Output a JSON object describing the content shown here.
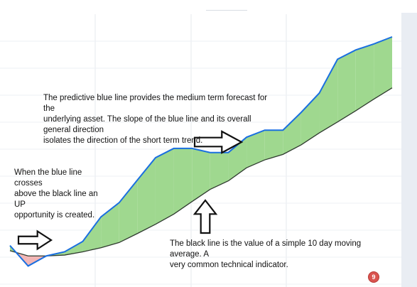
{
  "chart_data": {
    "type": "line",
    "title": "",
    "xlabel": "",
    "ylabel": "",
    "grid": true,
    "legend": "none",
    "x": [
      0,
      1,
      2,
      3,
      4,
      5,
      6,
      7,
      8,
      9,
      10,
      11,
      12,
      13,
      14,
      15,
      16,
      17,
      18,
      19,
      20,
      21
    ],
    "xlim": [
      0,
      21
    ],
    "ylim": [
      0,
      100
    ],
    "series": [
      {
        "key": "blue",
        "color": "#1a6fe0",
        "values": [
          15.2,
          7.7,
          11.4,
          12.9,
          16.7,
          25.7,
          30.9,
          39.2,
          47.4,
          50.8,
          50.8,
          49.3,
          49.3,
          54.9,
          57.5,
          57.5,
          64.0,
          71.1,
          83.5,
          86.9,
          89.1,
          91.7
        ]
      },
      {
        "key": "black",
        "color": "#2f3a2f",
        "values": [
          13.3,
          11.4,
          11.4,
          11.7,
          12.9,
          14.4,
          16.3,
          19.6,
          23.0,
          26.7,
          31.3,
          35.8,
          38.9,
          43.7,
          46.6,
          48.6,
          52.1,
          56.5,
          60.5,
          64.6,
          68.9,
          73.0
        ]
      }
    ],
    "fill_between": {
      "above_color": "#9fd88f",
      "below_color": "#f2b6b6"
    }
  },
  "annotations": {
    "blue_line": "The predictive blue line provides the medium term forecast for the\nunderlying asset.  The slope of the blue line and its overall general direction\nisolates the direction of the short term trend.",
    "cross": "When the blue line crosses\nabove the black line an UP\nopportunity is created.",
    "black_line": "The black line is the value of a simple 10 day moving average.  A\nvery common technical indicator."
  },
  "arrows": [
    {
      "name": "cross-arrow",
      "direction": "right"
    },
    {
      "name": "trend-arrow",
      "direction": "right"
    },
    {
      "name": "ma-arrow",
      "direction": "up"
    }
  ],
  "badge": {
    "label": "9"
  }
}
